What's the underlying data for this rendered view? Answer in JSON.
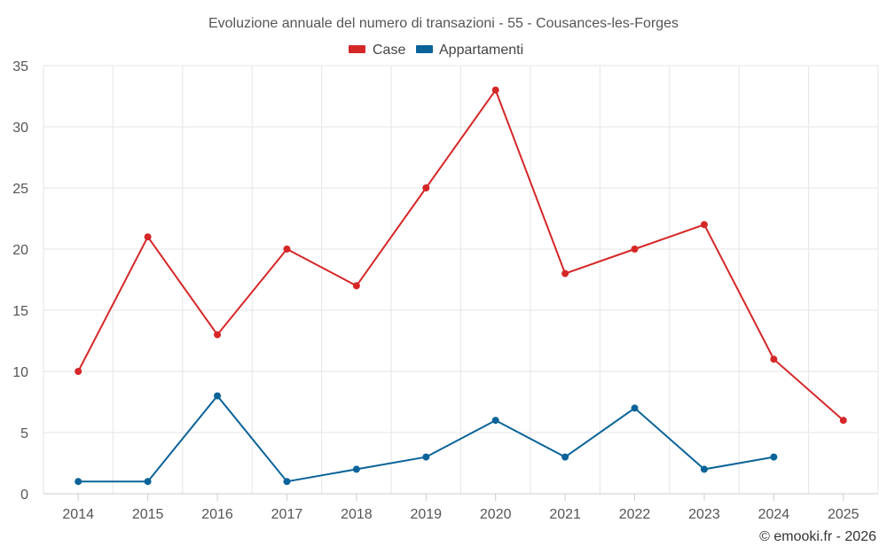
{
  "chart_data": {
    "type": "line",
    "title": "Evoluzione annuale del numero di transazioni - 55 - Cousances-les-Forges",
    "categories": [
      "2014",
      "2015",
      "2016",
      "2017",
      "2018",
      "2019",
      "2020",
      "2021",
      "2022",
      "2023",
      "2024",
      "2025"
    ],
    "ylim": [
      0,
      35
    ],
    "yticks": [
      0,
      5,
      10,
      15,
      20,
      25,
      30,
      35
    ],
    "grid": true,
    "legend_position": "top-center",
    "xlabel": "",
    "ylabel": "",
    "series": [
      {
        "name": "Case",
        "color": "#d62728",
        "values": [
          10,
          21,
          13,
          20,
          17,
          25,
          33,
          18,
          20,
          22,
          11,
          6
        ]
      },
      {
        "name": "Appartamenti",
        "color": "#0a6399",
        "values": [
          1,
          1,
          8,
          1,
          2,
          3,
          6,
          3,
          7,
          2,
          3,
          null
        ]
      }
    ]
  },
  "credit": "© emooki.fr - 2026"
}
